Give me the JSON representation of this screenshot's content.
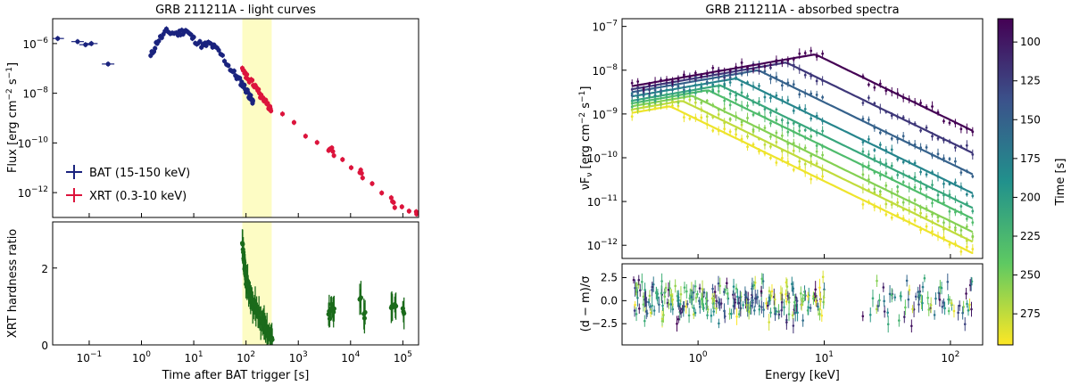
{
  "chart_data": [
    {
      "type": "scatter",
      "panel": "light-curves",
      "title": "GRB 211211A - light curves",
      "xlabel": "",
      "ylabel": "Flux [erg cm^-2 s^-1]",
      "xscale": "log",
      "yscale": "log",
      "xlim": [
        0.02,
        200000
      ],
      "ylim": [
        1e-13,
        1e-05
      ],
      "x_ticks": [
        "10^-1",
        "10^0",
        "10^1",
        "10^2",
        "10^3",
        "10^4",
        "10^5"
      ],
      "y_ticks": [
        "10^-12",
        "10^-10",
        "10^-8",
        "10^-6"
      ],
      "shaded_interval": [
        85,
        310
      ],
      "legend_position": "lower-left",
      "series": [
        {
          "name": "BAT (15-150 keV)",
          "color": "#1a237e",
          "x": [
            0.025,
            0.06,
            0.085,
            0.11,
            0.23,
            1.5,
            2.0,
            3.0,
            5.0,
            7.0,
            10,
            15,
            20,
            30,
            50,
            70,
            90,
            110,
            130
          ],
          "y": [
            1.6e-06,
            1.2e-06,
            9e-07,
            1e-06,
            1.5e-07,
            3e-07,
            1.2e-06,
            3e-06,
            2.5e-06,
            3.5e-06,
            1.5e-06,
            8e-07,
            1e-06,
            5e-07,
            1e-07,
            4e-08,
            2e-08,
            1e-08,
            5e-09
          ]
        },
        {
          "name": "XRT (0.3-10 keV)",
          "color": "#dc143c",
          "x": [
            85,
            100,
            120,
            150,
            180,
            220,
            270,
            300,
            3800,
            4200,
            4800,
            15000,
            17000,
            60000,
            70000,
            180000
          ],
          "y": [
            8e-08,
            5e-08,
            3e-08,
            2e-08,
            1e-08,
            5e-09,
            3e-09,
            2.5e-09,
            5e-11,
            6e-11,
            3.5e-11,
            7e-12,
            5e-12,
            5e-13,
            3e-13,
            1.8e-13
          ]
        }
      ]
    },
    {
      "type": "scatter",
      "panel": "hardness-ratio",
      "title": "",
      "xlabel": "Time after BAT trigger [s]",
      "ylabel": "XRT hardness ratio",
      "xscale": "log",
      "xlim": [
        0.02,
        200000
      ],
      "ylim": [
        0,
        3.2
      ],
      "x_ticks": [
        "10^-1",
        "10^0",
        "10^1",
        "10^2",
        "10^3",
        "10^4",
        "10^5"
      ],
      "y_ticks": [
        "0",
        "2"
      ],
      "shaded_interval": [
        85,
        310
      ],
      "series": [
        {
          "name": "",
          "color": "#1b6b1b",
          "x": [
            85,
            90,
            95,
            100,
            110,
            120,
            130,
            150,
            170,
            200,
            230,
            260,
            300,
            3800,
            4200,
            4600,
            15000,
            18000,
            60000,
            70000,
            100000
          ],
          "y": [
            2.6,
            2.2,
            1.9,
            1.7,
            1.5,
            1.3,
            1.1,
            0.95,
            0.85,
            0.6,
            0.5,
            0.35,
            0.2,
            0.8,
            1.0,
            0.85,
            1.2,
            0.8,
            1.0,
            1.1,
            0.9
          ]
        }
      ]
    },
    {
      "type": "line",
      "panel": "absorbed-spectra",
      "title": "GRB 211211A - absorbed spectra",
      "xlabel": "",
      "ylabel": "νFν [erg cm^-2 s^-1]",
      "xscale": "log",
      "yscale": "log",
      "xlim": [
        0.25,
        180
      ],
      "ylim": [
        5e-13,
        1.5e-07
      ],
      "x_ticks": [],
      "y_ticks": [
        "10^-12",
        "10^-11",
        "10^-10",
        "10^-9",
        "10^-8",
        "10^-7"
      ],
      "series": [
        {
          "time": 85,
          "peak": 8.5,
          "amp": 2.3e-08
        },
        {
          "time": 120,
          "peak": 5.0,
          "amp": 1.5e-08
        },
        {
          "time": 150,
          "peak": 3.0,
          "amp": 1e-08
        },
        {
          "time": 180,
          "peak": 2.0,
          "amp": 6.5e-09
        },
        {
          "time": 210,
          "peak": 1.5,
          "amp": 4.5e-09
        },
        {
          "time": 230,
          "peak": 1.2,
          "amp": 3.5e-09
        },
        {
          "time": 255,
          "peak": 0.9,
          "amp": 2.6e-09
        },
        {
          "time": 275,
          "peak": 0.75,
          "amp": 2e-09
        },
        {
          "time": 290,
          "peak": 0.6,
          "amp": 1.5e-09
        }
      ]
    },
    {
      "type": "scatter",
      "panel": "residuals",
      "title": "",
      "xlabel": "Energy [keV]",
      "ylabel": "(d − m)/σ",
      "xscale": "log",
      "xlim": [
        0.25,
        180
      ],
      "ylim": [
        -4.8,
        4.0
      ],
      "x_ticks": [
        "10^0",
        "10^1",
        "10^2"
      ],
      "y_ticks": [
        "−2.5",
        "0.0",
        "2.5"
      ],
      "energy_ranges": [
        [
          0.3,
          10
        ],
        [
          20,
          150
        ]
      ]
    }
  ],
  "colorbar": {
    "label": "Time [s]",
    "range": [
      85,
      295
    ],
    "ticks": [
      "100",
      "125",
      "150",
      "175",
      "200",
      "225",
      "250",
      "275"
    ]
  },
  "legend": {
    "bat_label": "BAT (15-150 keV)",
    "xrt_label": "XRT (0.3-10 keV)"
  },
  "colors": {
    "bat": "#1a237e",
    "xrt": "#dc143c",
    "hardness": "#1b6b1b",
    "shade": "#fdfcc4"
  }
}
